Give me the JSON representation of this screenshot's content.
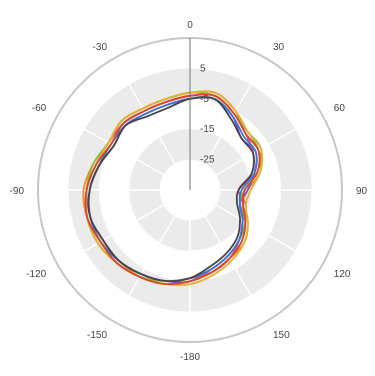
{
  "chart_data": {
    "type": "polar-line",
    "title": "",
    "angular_axis": {
      "direction": "clockwise",
      "zero_at": "top",
      "tick_labels": [
        "0",
        "30",
        "60",
        "90",
        "120",
        "150",
        "-180",
        "-150",
        "-120",
        "-90",
        "-60",
        "-30"
      ],
      "tick_angles": [
        0,
        30,
        60,
        90,
        120,
        150,
        180,
        210,
        240,
        270,
        300,
        330
      ]
    },
    "radial_axis": {
      "range": [
        -35,
        15
      ],
      "ticks": [
        -25,
        -15,
        -5,
        5
      ],
      "tick_labels": [
        "-25",
        "-15",
        "-5",
        "5"
      ]
    },
    "grid": true,
    "legend": "none",
    "angles": [
      0,
      15,
      30,
      45,
      60,
      75,
      90,
      105,
      120,
      135,
      150,
      165,
      180,
      195,
      210,
      225,
      240,
      255,
      270,
      285,
      300,
      315,
      330,
      345
    ],
    "series": [
      {
        "color": "#2ea3b0",
        "values": [
          -4,
          -3,
          -6,
          -8,
          -8,
          -12,
          -17,
          -18,
          -14,
          -11,
          -9,
          -7,
          -5,
          -3,
          -2,
          -1,
          0,
          0,
          -1,
          -3,
          -5,
          -4,
          -5,
          -5
        ]
      },
      {
        "color": "#f28c28",
        "values": [
          -3,
          -2,
          -5,
          -9,
          -9,
          -11,
          -16,
          -17,
          -13,
          -10,
          -9,
          -7,
          -5,
          -3,
          -2,
          -2,
          -1,
          0,
          0,
          -2,
          -4,
          -3,
          -4,
          -4
        ]
      },
      {
        "color": "#7b4fc4",
        "values": [
          -5,
          -4,
          -7,
          -11,
          -10,
          -13,
          -16,
          -18,
          -15,
          -12,
          -10,
          -8,
          -5,
          -4,
          -3,
          -2,
          -2,
          -1,
          -2,
          -4,
          -6,
          -5,
          -6,
          -6
        ]
      },
      {
        "color": "#e0508a",
        "values": [
          -4,
          -3,
          -6,
          -9,
          -11,
          -14,
          -19,
          -16,
          -15,
          -12,
          -9,
          -7,
          -6,
          -4,
          -3,
          -2,
          -1,
          -1,
          -1,
          -3,
          -4,
          -4,
          -5,
          -5
        ]
      },
      {
        "color": "#8bbd3d",
        "values": [
          -3,
          -3,
          -6,
          -8,
          -9,
          -12,
          -17,
          -18,
          -14,
          -12,
          -10,
          -8,
          -6,
          -4,
          -2,
          -1,
          0,
          0,
          -1,
          -2,
          -4,
          -3,
          -4,
          -4
        ]
      },
      {
        "color": "#3a74d9",
        "values": [
          -5,
          -4,
          -7,
          -10,
          -10,
          -13,
          -18,
          -18,
          -15,
          -12,
          -10,
          -8,
          -6,
          -4,
          -3,
          -2,
          -1,
          -1,
          -2,
          -4,
          -5,
          -5,
          -6,
          -6
        ]
      },
      {
        "color": "#e8b02e",
        "values": [
          -3,
          -2,
          -5,
          -8,
          -8,
          -11,
          -15,
          -16,
          -13,
          -10,
          -8,
          -6,
          -4,
          -3,
          -2,
          -1,
          0,
          0,
          -1,
          -3,
          -4,
          -3,
          -4,
          -4
        ]
      },
      {
        "color": "#d9472b",
        "values": [
          -4,
          -3,
          -6,
          -9,
          -9,
          -12,
          -17,
          -17,
          -14,
          -11,
          -9,
          -7,
          -5,
          -3,
          -2,
          -1,
          -1,
          0,
          -1,
          -3,
          -5,
          -4,
          -5,
          -5
        ]
      },
      {
        "color": "#454545",
        "values": [
          -5,
          -4,
          -8,
          -11,
          -11,
          -14,
          -19,
          -19,
          -16,
          -13,
          -11,
          -9,
          -6,
          -4,
          -3,
          -2,
          -2,
          -1,
          -2,
          -4,
          -6,
          -5,
          -7,
          -7
        ]
      }
    ]
  }
}
